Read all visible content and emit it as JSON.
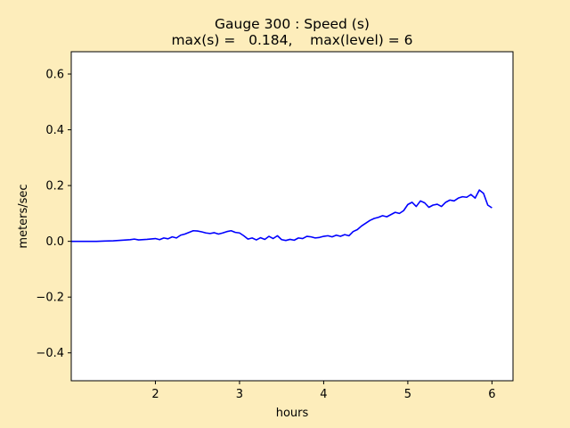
{
  "chart_data": {
    "type": "line",
    "title_line1": "Gauge 300 : Speed (s)",
    "title_line2": "max(s) =   0.184,    max(level) = 6",
    "xlabel": "hours",
    "ylabel": "meters/sec",
    "xlim": [
      1.0,
      6.25
    ],
    "ylim": [
      -0.5,
      0.68
    ],
    "xticks": [
      2,
      3,
      4,
      5,
      6
    ],
    "yticks": [
      -0.4,
      -0.2,
      0.0,
      0.2,
      0.4,
      0.6
    ],
    "xtick_labels": [
      "2",
      "3",
      "4",
      "5",
      "6"
    ],
    "ytick_labels": [
      "−0.4",
      "−0.2",
      "0.0",
      "0.2",
      "0.4",
      "0.6"
    ],
    "grid": false,
    "background_color": "#fdedbb",
    "plot_background": "#ffffff",
    "series": [
      {
        "color": "#0000ff",
        "x": [
          1.0,
          1.1,
          1.2,
          1.3,
          1.4,
          1.5,
          1.6,
          1.7,
          1.75,
          1.8,
          1.9,
          2.0,
          2.05,
          2.1,
          2.15,
          2.2,
          2.25,
          2.3,
          2.35,
          2.4,
          2.45,
          2.5,
          2.55,
          2.6,
          2.65,
          2.7,
          2.75,
          2.8,
          2.85,
          2.9,
          2.95,
          3.0,
          3.05,
          3.1,
          3.15,
          3.2,
          3.25,
          3.3,
          3.35,
          3.4,
          3.45,
          3.5,
          3.55,
          3.6,
          3.65,
          3.7,
          3.75,
          3.8,
          3.85,
          3.9,
          3.95,
          4.0,
          4.05,
          4.1,
          4.15,
          4.2,
          4.25,
          4.3,
          4.35,
          4.4,
          4.45,
          4.5,
          4.55,
          4.6,
          4.65,
          4.7,
          4.75,
          4.8,
          4.85,
          4.9,
          4.95,
          5.0,
          5.05,
          5.1,
          5.15,
          5.2,
          5.25,
          5.3,
          5.35,
          5.4,
          5.45,
          5.5,
          5.55,
          5.6,
          5.65,
          5.7,
          5.75,
          5.8,
          5.85,
          5.9,
          5.95,
          6.0
        ],
        "y": [
          0.0,
          0.0,
          0.0,
          0.0,
          0.001,
          0.002,
          0.004,
          0.006,
          0.008,
          0.005,
          0.007,
          0.01,
          0.006,
          0.012,
          0.009,
          0.016,
          0.012,
          0.022,
          0.026,
          0.032,
          0.038,
          0.037,
          0.034,
          0.03,
          0.028,
          0.031,
          0.026,
          0.03,
          0.035,
          0.038,
          0.032,
          0.03,
          0.02,
          0.008,
          0.012,
          0.005,
          0.013,
          0.007,
          0.018,
          0.01,
          0.02,
          0.006,
          0.003,
          0.007,
          0.004,
          0.012,
          0.01,
          0.018,
          0.016,
          0.012,
          0.014,
          0.018,
          0.02,
          0.016,
          0.022,
          0.018,
          0.024,
          0.02,
          0.035,
          0.042,
          0.055,
          0.065,
          0.075,
          0.082,
          0.086,
          0.092,
          0.088,
          0.096,
          0.104,
          0.1,
          0.11,
          0.132,
          0.14,
          0.125,
          0.145,
          0.138,
          0.122,
          0.13,
          0.133,
          0.125,
          0.14,
          0.148,
          0.145,
          0.155,
          0.16,
          0.158,
          0.168,
          0.155,
          0.184,
          0.172,
          0.13,
          0.12
        ]
      }
    ]
  }
}
